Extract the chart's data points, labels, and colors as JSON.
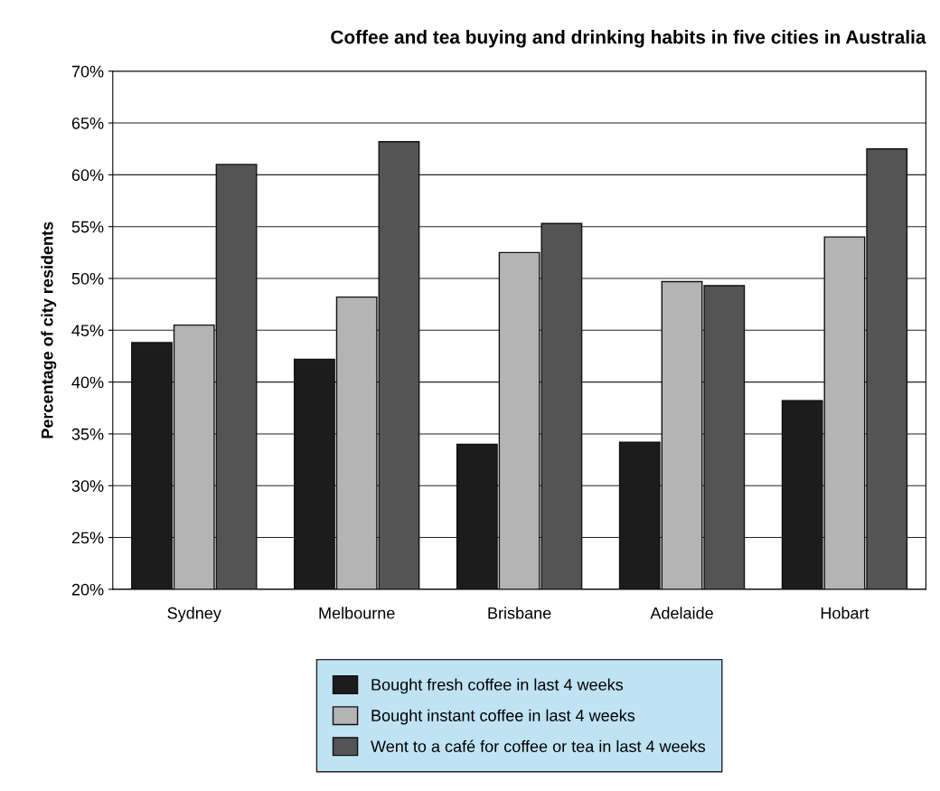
{
  "chart_data": {
    "type": "bar",
    "title": "Coffee and tea buying and drinking habits in five cities in Australia",
    "ylabel": "Percentage of city residents",
    "categories": [
      "Sydney",
      "Melbourne",
      "Brisbane",
      "Adelaide",
      "Hobart"
    ],
    "series": [
      {
        "name": "Bought fresh coffee in last 4 weeks",
        "color": "#1c1c1c",
        "values": [
          43.8,
          42.2,
          34,
          34.2,
          38.2
        ]
      },
      {
        "name": "Bought instant coffee in last 4 weeks",
        "color": "#b4b4b4",
        "values": [
          45.5,
          48.2,
          52.5,
          49.7,
          54
        ]
      },
      {
        "name": "Went to a café for coffee or tea in last 4 weeks",
        "color": "#545454",
        "values": [
          61,
          63.2,
          55.3,
          49.3,
          62.5
        ]
      }
    ],
    "ylim": [
      20,
      70
    ],
    "yticks": [
      {
        "value": 20,
        "label": "20%"
      },
      {
        "value": 25,
        "label": "25%"
      },
      {
        "value": 30,
        "label": "30%"
      },
      {
        "value": 35,
        "label": "35%"
      },
      {
        "value": 40,
        "label": "40%"
      },
      {
        "value": 45,
        "label": "45%"
      },
      {
        "value": 50,
        "label": "50%"
      },
      {
        "value": 55,
        "label": "55%"
      },
      {
        "value": 60,
        "label": "60%"
      },
      {
        "value": 65,
        "label": "65%"
      },
      {
        "value": 70,
        "label": "70%"
      }
    ],
    "grid": "y",
    "legend": "bottom"
  }
}
